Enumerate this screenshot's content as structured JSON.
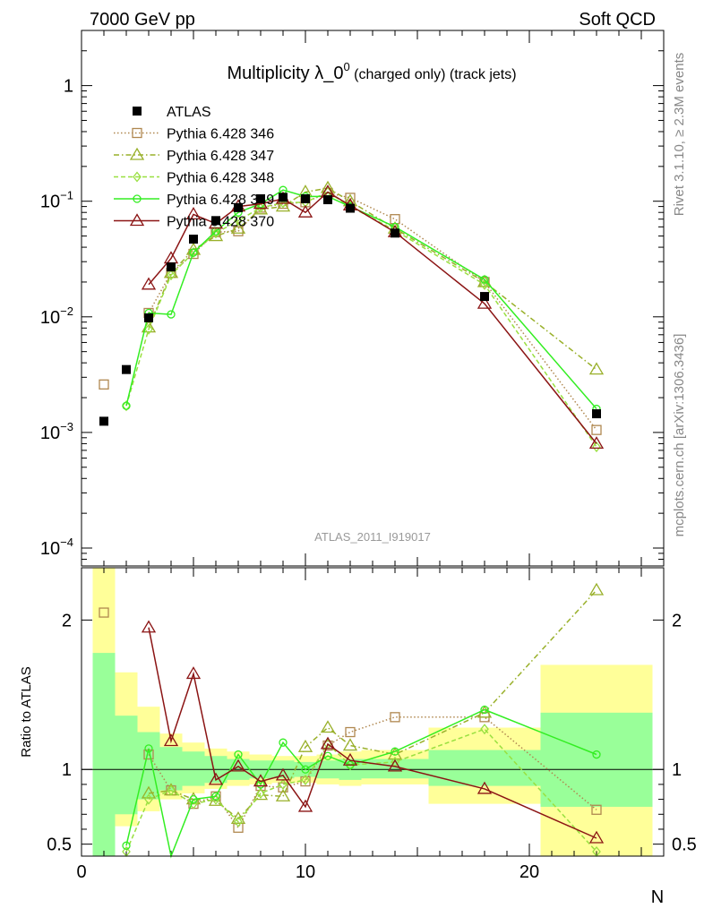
{
  "header": {
    "left": "7000 GeV pp",
    "right": "Soft QCD"
  },
  "title": {
    "main": "Multiplicity λ_0",
    "sup": "0",
    "sub": " (charged only) (track jets)"
  },
  "side_labels": {
    "rivet": "Rivet 3.1.10, ≥ 2.3M events",
    "mcplots": "mcplots.cern.ch [arXiv:1306.3436]"
  },
  "analysis_label": "ATLAS_2011_I919017",
  "xlabel": "N",
  "ratio_ylabel": "Ratio to ATLAS",
  "colors": {
    "atlas": "#000000",
    "p346": "#b08850",
    "p347": "#99b02a",
    "p348": "#99e040",
    "p349": "#33ee22",
    "p370": "#8b1414",
    "band_yellow": "#ffff99",
    "band_green": "#99ff99"
  },
  "chart_data": [
    {
      "type": "scatter",
      "yscale": "log",
      "xlim": [
        0,
        26
      ],
      "ylim": [
        7e-05,
        3
      ],
      "x_ticks": [
        0,
        10,
        20
      ],
      "y_tick_labels": [
        {
          "value": 1,
          "mant": "1",
          "exp": ""
        },
        {
          "value": 0.1,
          "mant": "10",
          "exp": "−1"
        },
        {
          "value": 0.01,
          "mant": "10",
          "exp": "−2"
        },
        {
          "value": 0.001,
          "mant": "10",
          "exp": "−3"
        },
        {
          "value": 0.0001,
          "mant": "10",
          "exp": "−4"
        }
      ],
      "x": [
        1,
        2,
        3,
        4,
        5,
        6,
        7,
        8,
        9,
        10,
        11,
        12,
        14,
        18,
        23
      ],
      "series": [
        {
          "name": "ATLAS",
          "key": "atlas",
          "marker": "square-filled",
          "values": [
            0.00125,
            0.0035,
            0.0098,
            0.027,
            0.047,
            0.068,
            0.088,
            0.105,
            0.108,
            0.105,
            0.103,
            0.087,
            0.053,
            0.015,
            0.00145
          ]
        },
        {
          "name": "Pythia 6.428 346",
          "key": "p346",
          "marker": "square-open",
          "dash": "1.5,2.5",
          "values": [
            0.0026,
            null,
            0.0108,
            0.024,
            0.035,
            0.054,
            0.055,
            0.088,
            0.095,
            0.098,
            0.118,
            0.107,
            0.07,
            0.02,
            0.00105
          ]
        },
        {
          "name": "Pythia 6.428 347",
          "key": "p347",
          "marker": "triangle-open",
          "dash": "6,3,1.5,3",
          "values": [
            null,
            null,
            0.0081,
            0.024,
            0.038,
            0.05,
            0.058,
            0.085,
            0.09,
            0.12,
            0.13,
            0.1,
            0.058,
            0.02,
            0.0035
          ]
        },
        {
          "name": "Pythia 6.428 348",
          "key": "p348",
          "marker": "diamond-open",
          "dash": "5,3",
          "values": [
            null,
            0.0017,
            0.0078,
            0.023,
            0.036,
            0.053,
            0.068,
            0.088,
            0.097,
            0.098,
            0.12,
            0.09,
            0.056,
            0.019,
            0.00075
          ]
        },
        {
          "name": "Pythia 6.428 349",
          "key": "p349",
          "marker": "circle-open",
          "dash": "",
          "values": [
            null,
            0.0017,
            0.0108,
            0.0105,
            0.036,
            0.055,
            0.08,
            0.095,
            0.125,
            0.11,
            0.11,
            0.09,
            0.06,
            0.021,
            0.0016
          ]
        },
        {
          "name": "Pythia 6.428 370",
          "key": "p370",
          "marker": "triangle-open",
          "dash": "",
          "values": [
            null,
            null,
            0.019,
            0.032,
            0.077,
            0.064,
            0.09,
            0.095,
            0.105,
            0.08,
            0.12,
            0.092,
            0.054,
            0.013,
            0.0008
          ]
        }
      ]
    },
    {
      "type": "scatter",
      "ylim": [
        0.42,
        2.35
      ],
      "y_ticks": [
        0.5,
        1,
        2
      ],
      "x": [
        1,
        2,
        3,
        4,
        5,
        6,
        7,
        8,
        9,
        10,
        11,
        12,
        14,
        18,
        23
      ],
      "bands": {
        "edges": [
          0.5,
          1.5,
          2.5,
          3.5,
          4.5,
          5.5,
          6.5,
          7.5,
          8.5,
          9.5,
          10.5,
          11.5,
          12.5,
          15.5,
          20.5,
          25.5
        ],
        "yellow": [
          [
            0.42,
            2.35
          ],
          [
            0.62,
            1.65
          ],
          [
            0.72,
            1.42
          ],
          [
            0.8,
            1.24
          ],
          [
            0.84,
            1.18
          ],
          [
            0.87,
            1.14
          ],
          [
            0.89,
            1.12
          ],
          [
            0.9,
            1.1
          ],
          [
            0.91,
            1.09
          ],
          [
            0.91,
            1.09
          ],
          [
            0.9,
            1.1
          ],
          [
            0.89,
            1.12
          ],
          [
            0.9,
            1.13
          ],
          [
            0.77,
            1.28
          ],
          [
            0.37,
            1.7
          ]
        ],
        "green": [
          [
            0.42,
            1.78
          ],
          [
            0.7,
            1.36
          ],
          [
            0.8,
            1.25
          ],
          [
            0.86,
            1.15
          ],
          [
            0.89,
            1.12
          ],
          [
            0.91,
            1.09
          ],
          [
            0.93,
            1.07
          ],
          [
            0.94,
            1.06
          ],
          [
            0.94,
            1.06
          ],
          [
            0.95,
            1.05
          ],
          [
            0.94,
            1.06
          ],
          [
            0.93,
            1.07
          ],
          [
            0.94,
            1.07
          ],
          [
            0.89,
            1.13
          ],
          [
            0.75,
            1.38
          ]
        ]
      },
      "series": [
        {
          "name": "Pythia 6.428 346",
          "key": "p346",
          "marker": "square-open",
          "dash": "1.5,2.5",
          "values": [
            2.05,
            null,
            1.1,
            0.86,
            0.77,
            0.82,
            0.61,
            0.89,
            0.88,
            0.92,
            1.16,
            1.25,
            1.35,
            1.35,
            0.73
          ]
        },
        {
          "name": "Pythia 6.428 347",
          "key": "p347",
          "marker": "triangle-open",
          "dash": "6,3,1.5,3",
          "values": [
            null,
            null,
            0.84,
            0.86,
            0.8,
            0.79,
            0.67,
            0.83,
            0.82,
            1.15,
            1.28,
            1.16,
            1.1,
            1.38,
            2.2
          ]
        },
        {
          "name": "Pythia 6.428 348",
          "key": "p348",
          "marker": "diamond-open",
          "dash": "5,3",
          "values": [
            null,
            0.45,
            0.8,
            0.86,
            0.77,
            0.8,
            0.65,
            0.84,
            0.9,
            0.93,
            1.17,
            1.03,
            1.05,
            1.27,
            0.45
          ]
        },
        {
          "name": "Pythia 6.428 349",
          "key": "p349",
          "marker": "circle-open",
          "dash": "",
          "values": [
            null,
            0.49,
            1.14,
            0.38,
            0.8,
            0.82,
            1.1,
            0.9,
            1.18,
            1.0,
            1.09,
            1.03,
            1.12,
            1.4,
            1.1
          ]
        },
        {
          "name": "Pythia 6.428 370",
          "key": "p370",
          "marker": "triangle-open",
          "dash": "",
          "values": [
            null,
            null,
            1.95,
            1.19,
            1.64,
            0.93,
            1.02,
            0.92,
            0.96,
            0.75,
            1.17,
            1.06,
            1.02,
            0.87,
            0.54
          ]
        }
      ]
    }
  ]
}
